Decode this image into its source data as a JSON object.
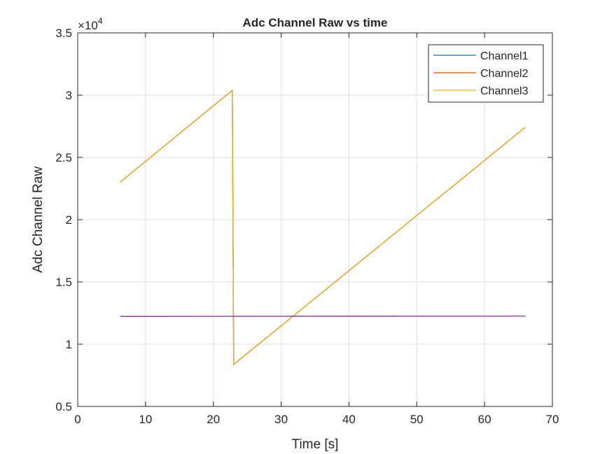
{
  "chart_data": {
    "type": "line",
    "title": "Adc Channel Raw vs time",
    "xlabel": "Time [s]",
    "ylabel": "Adc Channel Raw",
    "y_exponent_label": "×10",
    "y_exponent": "4",
    "xlim": [
      0,
      70
    ],
    "ylim": [
      5000,
      35000
    ],
    "xticks": [
      0,
      10,
      20,
      30,
      40,
      50,
      60,
      70
    ],
    "xtick_labels": [
      "0",
      "10",
      "20",
      "30",
      "40",
      "50",
      "60",
      "70"
    ],
    "yticks": [
      5000,
      10000,
      15000,
      20000,
      25000,
      30000,
      35000
    ],
    "ytick_labels": [
      "0.5",
      "1",
      "1.5",
      "2",
      "2.5",
      "3",
      "3.5"
    ],
    "grid": true,
    "legend_position": "top-right",
    "series": [
      {
        "name": "Channel1",
        "color": "#0072BD",
        "x": [
          6.3,
          22.8,
          23.0,
          66.0
        ],
        "y": [
          23030,
          30390,
          8370,
          27420
        ]
      },
      {
        "name": "Channel2",
        "color": "#D95319",
        "x": [
          6.3,
          22.8,
          23.0,
          66.0
        ],
        "y": [
          23030,
          30390,
          8370,
          27420
        ]
      },
      {
        "name": "Channel3",
        "color": "#EDB120",
        "x": [
          6.3,
          22.8,
          23.0,
          66.0
        ],
        "y": [
          23030,
          30390,
          8370,
          27420
        ]
      },
      {
        "color": "#7E2F8E",
        "x": [
          6.3,
          66.0
        ],
        "y": [
          12230,
          12250
        ]
      }
    ]
  }
}
